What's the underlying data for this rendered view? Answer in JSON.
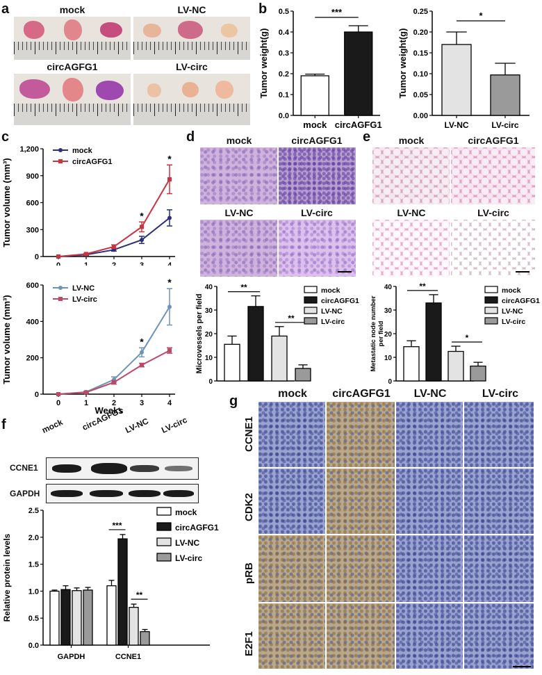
{
  "panels": {
    "a": "a",
    "b": "b",
    "c": "c",
    "d": "d",
    "e": "e",
    "f": "f",
    "g": "g"
  },
  "panel_a": {
    "captions": [
      "mock",
      "LV-NC",
      "circAGFG1",
      "LV-circ"
    ]
  },
  "panel_d": {
    "captions": [
      "mock",
      "circAGFG1",
      "LV-NC",
      "LV-circ"
    ]
  },
  "panel_e": {
    "captions": [
      "mock",
      "circAGFG1",
      "LV-NC",
      "LV-circ"
    ]
  },
  "panel_f": {
    "blot_lanes": [
      "mock",
      "circAGFG1",
      "LV-NC",
      "LV-circ"
    ],
    "blot_rows": [
      "CCNE1",
      "GAPDH"
    ]
  },
  "panel_g": {
    "columns": [
      "mock",
      "circAGFG1",
      "LV-NC",
      "LV-circ"
    ],
    "rows": [
      "CCNE1",
      "CDK2",
      "pRB",
      "E2F1"
    ]
  },
  "colors": {
    "mock": "#ffffff",
    "circAGFG1": "#1a1a1a",
    "LV-NC": "#e3e3e3",
    "LV-circ": "#9a9a9a",
    "line_mock": "#2b2f7d",
    "line_circ": "#cc3340",
    "line_lvnc": "#6e93b8",
    "line_lvcirc": "#c04867"
  },
  "chart_data": [
    {
      "id": "b1",
      "type": "bar",
      "categories": [
        "mock",
        "circAGFG1"
      ],
      "values": [
        0.19,
        0.4
      ],
      "errors": [
        0.008,
        0.03
      ],
      "ylabel": "Tumor weight(g)",
      "ylim": [
        0,
        0.5
      ],
      "yticks": [
        "0.0",
        "0.1",
        "0.2",
        "0.3",
        "0.4",
        "0.5"
      ],
      "significance": "***"
    },
    {
      "id": "b2",
      "type": "bar",
      "categories": [
        "LV-NC",
        "LV-circ"
      ],
      "values": [
        0.17,
        0.097
      ],
      "errors": [
        0.03,
        0.028
      ],
      "ylabel": "Tumor weight(g)",
      "ylim": [
        0,
        0.25
      ],
      "yticks": [
        "0.00",
        "0.05",
        "0.10",
        "0.15",
        "0.20",
        "0.25"
      ],
      "significance": "*"
    },
    {
      "id": "c1",
      "type": "line",
      "x": [
        0,
        1,
        2,
        3,
        4
      ],
      "xlabel": "Weeks",
      "ylabel": "Tumor volume (mm³)",
      "ylim": [
        0,
        1200
      ],
      "yticks": [
        "0",
        "300",
        "600",
        "900",
        "1,200"
      ],
      "series": [
        {
          "name": "mock",
          "values": [
            0,
            20,
            75,
            185,
            430
          ],
          "errors": [
            0,
            8,
            15,
            40,
            90
          ]
        },
        {
          "name": "circAGFG1",
          "values": [
            0,
            28,
            110,
            330,
            860
          ],
          "errors": [
            0,
            8,
            20,
            55,
            160
          ]
        }
      ],
      "annotations": [
        {
          "x": 3,
          "text": "*"
        },
        {
          "x": 4,
          "text": "*"
        }
      ]
    },
    {
      "id": "c2",
      "type": "line",
      "x": [
        0,
        1,
        2,
        3,
        4
      ],
      "xlabel": "Weeks",
      "ylabel": "Tumor volume (mm³)",
      "ylim": [
        0,
        600
      ],
      "yticks": [
        "0",
        "200",
        "400",
        "600"
      ],
      "series": [
        {
          "name": "LV-NC",
          "values": [
            0,
            12,
            80,
            230,
            480
          ],
          "errors": [
            0,
            4,
            15,
            25,
            100
          ]
        },
        {
          "name": "LV-circ",
          "values": [
            0,
            10,
            65,
            160,
            240
          ],
          "errors": [
            0,
            4,
            10,
            10,
            15
          ]
        }
      ],
      "annotations": [
        {
          "x": 3,
          "text": "*"
        },
        {
          "x": 4,
          "text": "*"
        }
      ]
    },
    {
      "id": "d",
      "type": "bar",
      "categories": [
        "mock",
        "circAGFG1",
        "LV-NC",
        "LV-circ"
      ],
      "values": [
        15.5,
        31.5,
        19,
        5.3
      ],
      "errors": [
        3.5,
        4.5,
        4,
        1.5
      ],
      "ylabel": "Microvessels per field",
      "ylim": [
        0,
        40
      ],
      "yticks": [
        "0",
        "10",
        "20",
        "30",
        "40"
      ],
      "brackets": [
        {
          "from": 0,
          "to": 1,
          "text": "**"
        },
        {
          "from": 2,
          "to": 3,
          "text": "**"
        }
      ],
      "legend": [
        "mock",
        "circAGFG1",
        "LV-NC",
        "LV-circ"
      ]
    },
    {
      "id": "e",
      "type": "bar",
      "categories": [
        "mock",
        "circAGFG1",
        "LV-NC",
        "LV-circ"
      ],
      "values": [
        14.5,
        33,
        12.5,
        6.3
      ],
      "errors": [
        2.5,
        3.5,
        2.2,
        1.6
      ],
      "ylabel": "Metastatic node number per field",
      "ylabel_lines": [
        "Metastatic node number",
        "per field"
      ],
      "ylim": [
        0,
        40
      ],
      "yticks": [
        "0",
        "10",
        "20",
        "30",
        "40"
      ],
      "brackets": [
        {
          "from": 0,
          "to": 1,
          "text": "**"
        },
        {
          "from": 2,
          "to": 3,
          "text": "*"
        }
      ],
      "legend": [
        "mock",
        "circAGFG1",
        "LV-NC",
        "LV-circ"
      ]
    },
    {
      "id": "f",
      "type": "bar",
      "groups": [
        "GAPDH",
        "CCNE1"
      ],
      "series": [
        {
          "name": "mock",
          "values": [
            1.0,
            1.1
          ],
          "errors": [
            0.02,
            0.1
          ]
        },
        {
          "name": "circAGFG1",
          "values": [
            1.03,
            1.97
          ],
          "errors": [
            0.07,
            0.08
          ]
        },
        {
          "name": "LV-NC",
          "values": [
            1.01,
            0.7
          ],
          "errors": [
            0.05,
            0.06
          ]
        },
        {
          "name": "LV-circ",
          "values": [
            1.02,
            0.25
          ],
          "errors": [
            0.05,
            0.04
          ]
        }
      ],
      "ylabel": "Relative protein levels",
      "ylim": [
        0,
        2.5
      ],
      "yticks": [
        "0.0",
        "0.5",
        "1.0",
        "1.5",
        "2.0",
        "2.5"
      ],
      "brackets": [
        {
          "group": 1,
          "from": 0,
          "to": 1,
          "text": "***"
        },
        {
          "group": 1,
          "from": 2,
          "to": 3,
          "text": "**"
        }
      ],
      "legend": [
        "mock",
        "circAGFG1",
        "LV-NC",
        "LV-circ"
      ]
    }
  ]
}
